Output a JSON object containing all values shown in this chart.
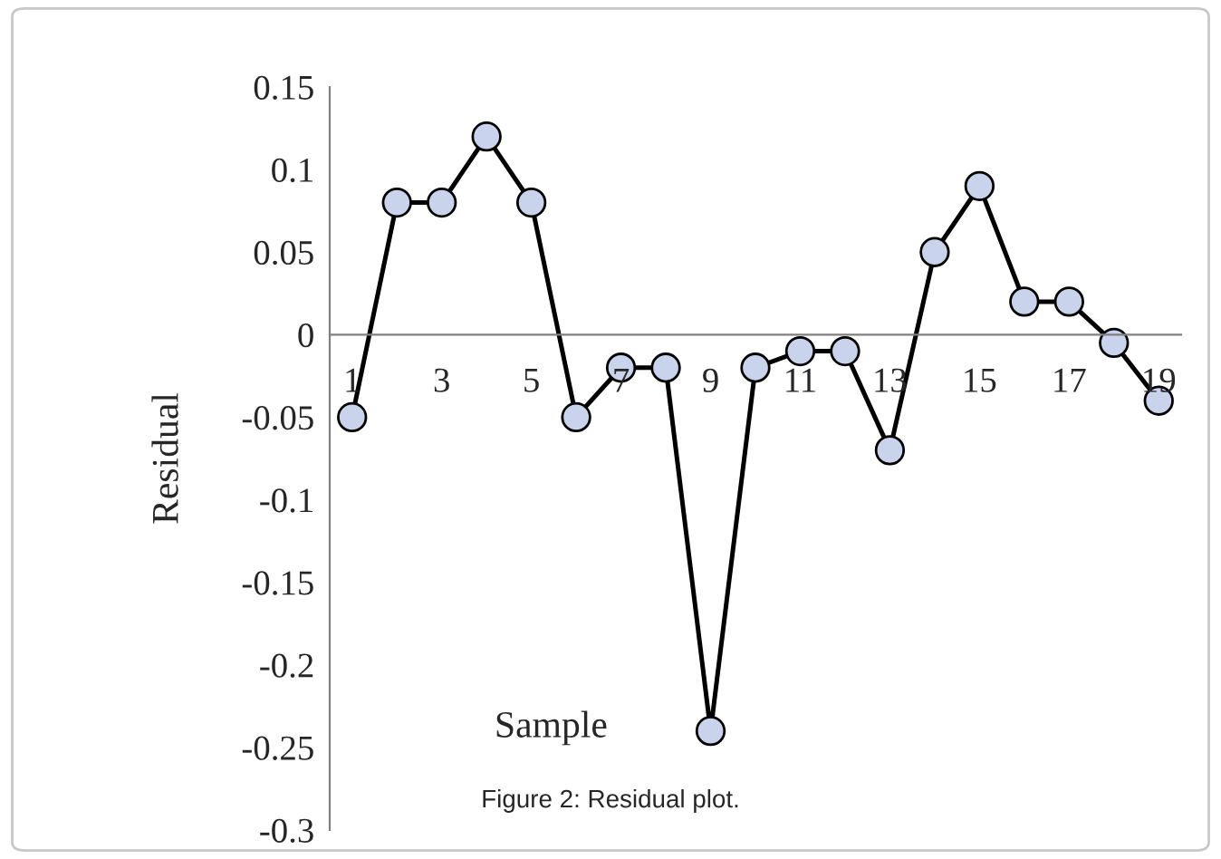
{
  "chart_data": {
    "type": "line",
    "xlabel": "Sample",
    "ylabel": "Residual",
    "x": [
      1,
      2,
      3,
      4,
      5,
      6,
      7,
      8,
      9,
      10,
      11,
      12,
      13,
      14,
      15,
      16,
      17,
      18,
      19
    ],
    "series": [
      {
        "color": "#000000",
        "values": [
          -0.05,
          0.08,
          0.08,
          0.12,
          0.08,
          -0.05,
          -0.02,
          -0.02,
          -0.24,
          -0.02,
          -0.01,
          -0.01,
          -0.07,
          0.05,
          0.09,
          0.02,
          0.02,
          -0.005,
          -0.04
        ]
      }
    ],
    "xlim": [
      0.5,
      19.5
    ],
    "xticks": [
      1,
      3,
      5,
      7,
      9,
      11,
      13,
      15,
      17,
      19
    ],
    "ylim": [
      -0.3,
      0.15
    ],
    "yticks": [
      {
        "value": -0.3,
        "label": "-0.3"
      },
      {
        "value": -0.25,
        "label": "-0.25"
      },
      {
        "value": -0.2,
        "label": "-0.2"
      },
      {
        "value": -0.15,
        "label": "-0.15"
      },
      {
        "value": -0.1,
        "label": "-0.1"
      },
      {
        "value": -0.05,
        "label": "-0.05"
      },
      0,
      {
        "value": 0.05,
        "label": "0.05"
      },
      {
        "value": 0.1,
        "label": "0.1"
      },
      {
        "value": 0.15,
        "label": "0.15"
      }
    ],
    "marker": "circle",
    "line_style": "solid",
    "grid": false,
    "legend": false,
    "annotations": [
      "Figure 2: Residual plot."
    ]
  }
}
